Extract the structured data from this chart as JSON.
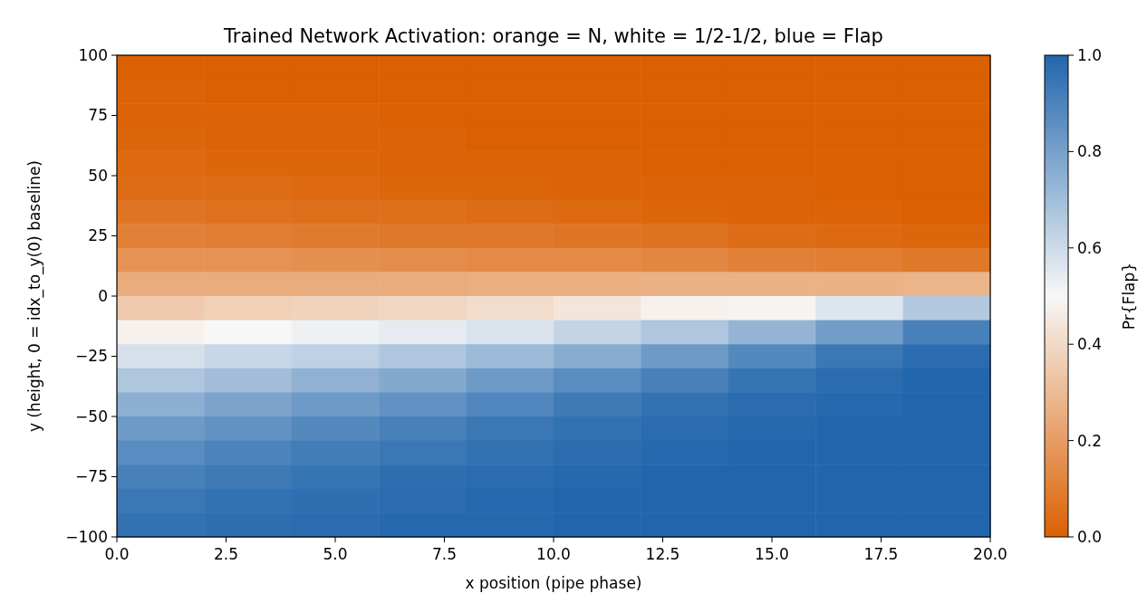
{
  "chart_data": {
    "type": "heatmap",
    "title": "Trained Network Activation: orange = N, white = 1/2-1/2, blue = Flap",
    "xlabel": "x position (pipe phase)",
    "ylabel": "y (height, 0 = idx_to_y(0) baseline)",
    "clabel": "Pr{Flap}",
    "xlim": [
      0,
      20
    ],
    "xticks": [
      {
        "value": 0,
        "label": "0.0"
      },
      {
        "value": 2.5,
        "label": "2.5"
      },
      {
        "value": 5,
        "label": "5.0"
      },
      {
        "value": 7.5,
        "label": "7.5"
      },
      {
        "value": 10,
        "label": "10.0"
      },
      {
        "value": 12.5,
        "label": "12.5"
      },
      {
        "value": 15,
        "label": "15.0"
      },
      {
        "value": 17.5,
        "label": "17.5"
      },
      {
        "value": 20,
        "label": "20.0"
      }
    ],
    "ylim": [
      -100,
      100
    ],
    "yticks": [
      {
        "value": -100,
        "label": "−100"
      },
      {
        "value": -75,
        "label": "−75"
      },
      {
        "value": -50,
        "label": "−50"
      },
      {
        "value": -25,
        "label": "−25"
      },
      0,
      25,
      50,
      75,
      100
    ],
    "clim": [
      0,
      1
    ],
    "cticks": [
      {
        "value": 0,
        "label": "0.0"
      },
      {
        "value": 0.2,
        "label": "0.2"
      },
      {
        "value": 0.4,
        "label": "0.4"
      },
      {
        "value": 0.6,
        "label": "0.6"
      },
      {
        "value": 0.8,
        "label": "0.8"
      },
      {
        "value": 1,
        "label": "1.0"
      }
    ],
    "colors": [
      "#db6002",
      "#f7f7f7",
      "#2166ac"
    ],
    "cells": [
      [
        0,
        0,
        0,
        0,
        0,
        0,
        0,
        0,
        0,
        0
      ],
      [
        0.01,
        0,
        0,
        0,
        0,
        0,
        0,
        0,
        0,
        0
      ],
      [
        0.01,
        0.01,
        0.01,
        0,
        0,
        0,
        0,
        0,
        0,
        0
      ],
      [
        0.02,
        0.01,
        0.01,
        0.01,
        0,
        0,
        0,
        0,
        0,
        0
      ],
      [
        0.03,
        0.02,
        0.02,
        0.01,
        0.01,
        0.01,
        0,
        0,
        0,
        0
      ],
      [
        0.04,
        0.04,
        0.03,
        0.02,
        0.02,
        0.01,
        0.01,
        0.01,
        0,
        0
      ],
      [
        0.07,
        0.06,
        0.05,
        0.05,
        0.04,
        0.03,
        0.02,
        0.01,
        0.01,
        0
      ],
      [
        0.11,
        0.1,
        0.09,
        0.08,
        0.08,
        0.07,
        0.06,
        0.04,
        0.03,
        0.02
      ],
      [
        0.17,
        0.17,
        0.16,
        0.15,
        0.14,
        0.14,
        0.13,
        0.11,
        0.1,
        0.08
      ],
      [
        0.25,
        0.25,
        0.25,
        0.25,
        0.26,
        0.26,
        0.27,
        0.27,
        0.27,
        0.28
      ],
      [
        0.35,
        0.37,
        0.38,
        0.39,
        0.41,
        0.44,
        0.48,
        0.49,
        0.56,
        0.66
      ],
      [
        0.48,
        0.5,
        0.52,
        0.54,
        0.57,
        0.62,
        0.67,
        0.73,
        0.81,
        0.91
      ],
      [
        0.58,
        0.61,
        0.63,
        0.67,
        0.71,
        0.76,
        0.82,
        0.88,
        0.94,
        0.98
      ],
      [
        0.67,
        0.7,
        0.74,
        0.77,
        0.82,
        0.87,
        0.91,
        0.95,
        0.98,
        1
      ],
      [
        0.75,
        0.79,
        0.82,
        0.85,
        0.89,
        0.93,
        0.96,
        0.98,
        0.99,
        1
      ],
      [
        0.82,
        0.85,
        0.88,
        0.91,
        0.94,
        0.96,
        0.98,
        0.99,
        1,
        1
      ],
      [
        0.87,
        0.9,
        0.92,
        0.94,
        0.96,
        0.98,
        0.99,
        1,
        1,
        1
      ],
      [
        0.91,
        0.93,
        0.95,
        0.97,
        0.98,
        0.99,
        1,
        1,
        1,
        1
      ],
      [
        0.94,
        0.96,
        0.97,
        0.98,
        0.99,
        1,
        1,
        1,
        1,
        1
      ],
      [
        0.96,
        0.97,
        0.98,
        0.99,
        0.99,
        1,
        1,
        1,
        1,
        1
      ]
    ]
  }
}
